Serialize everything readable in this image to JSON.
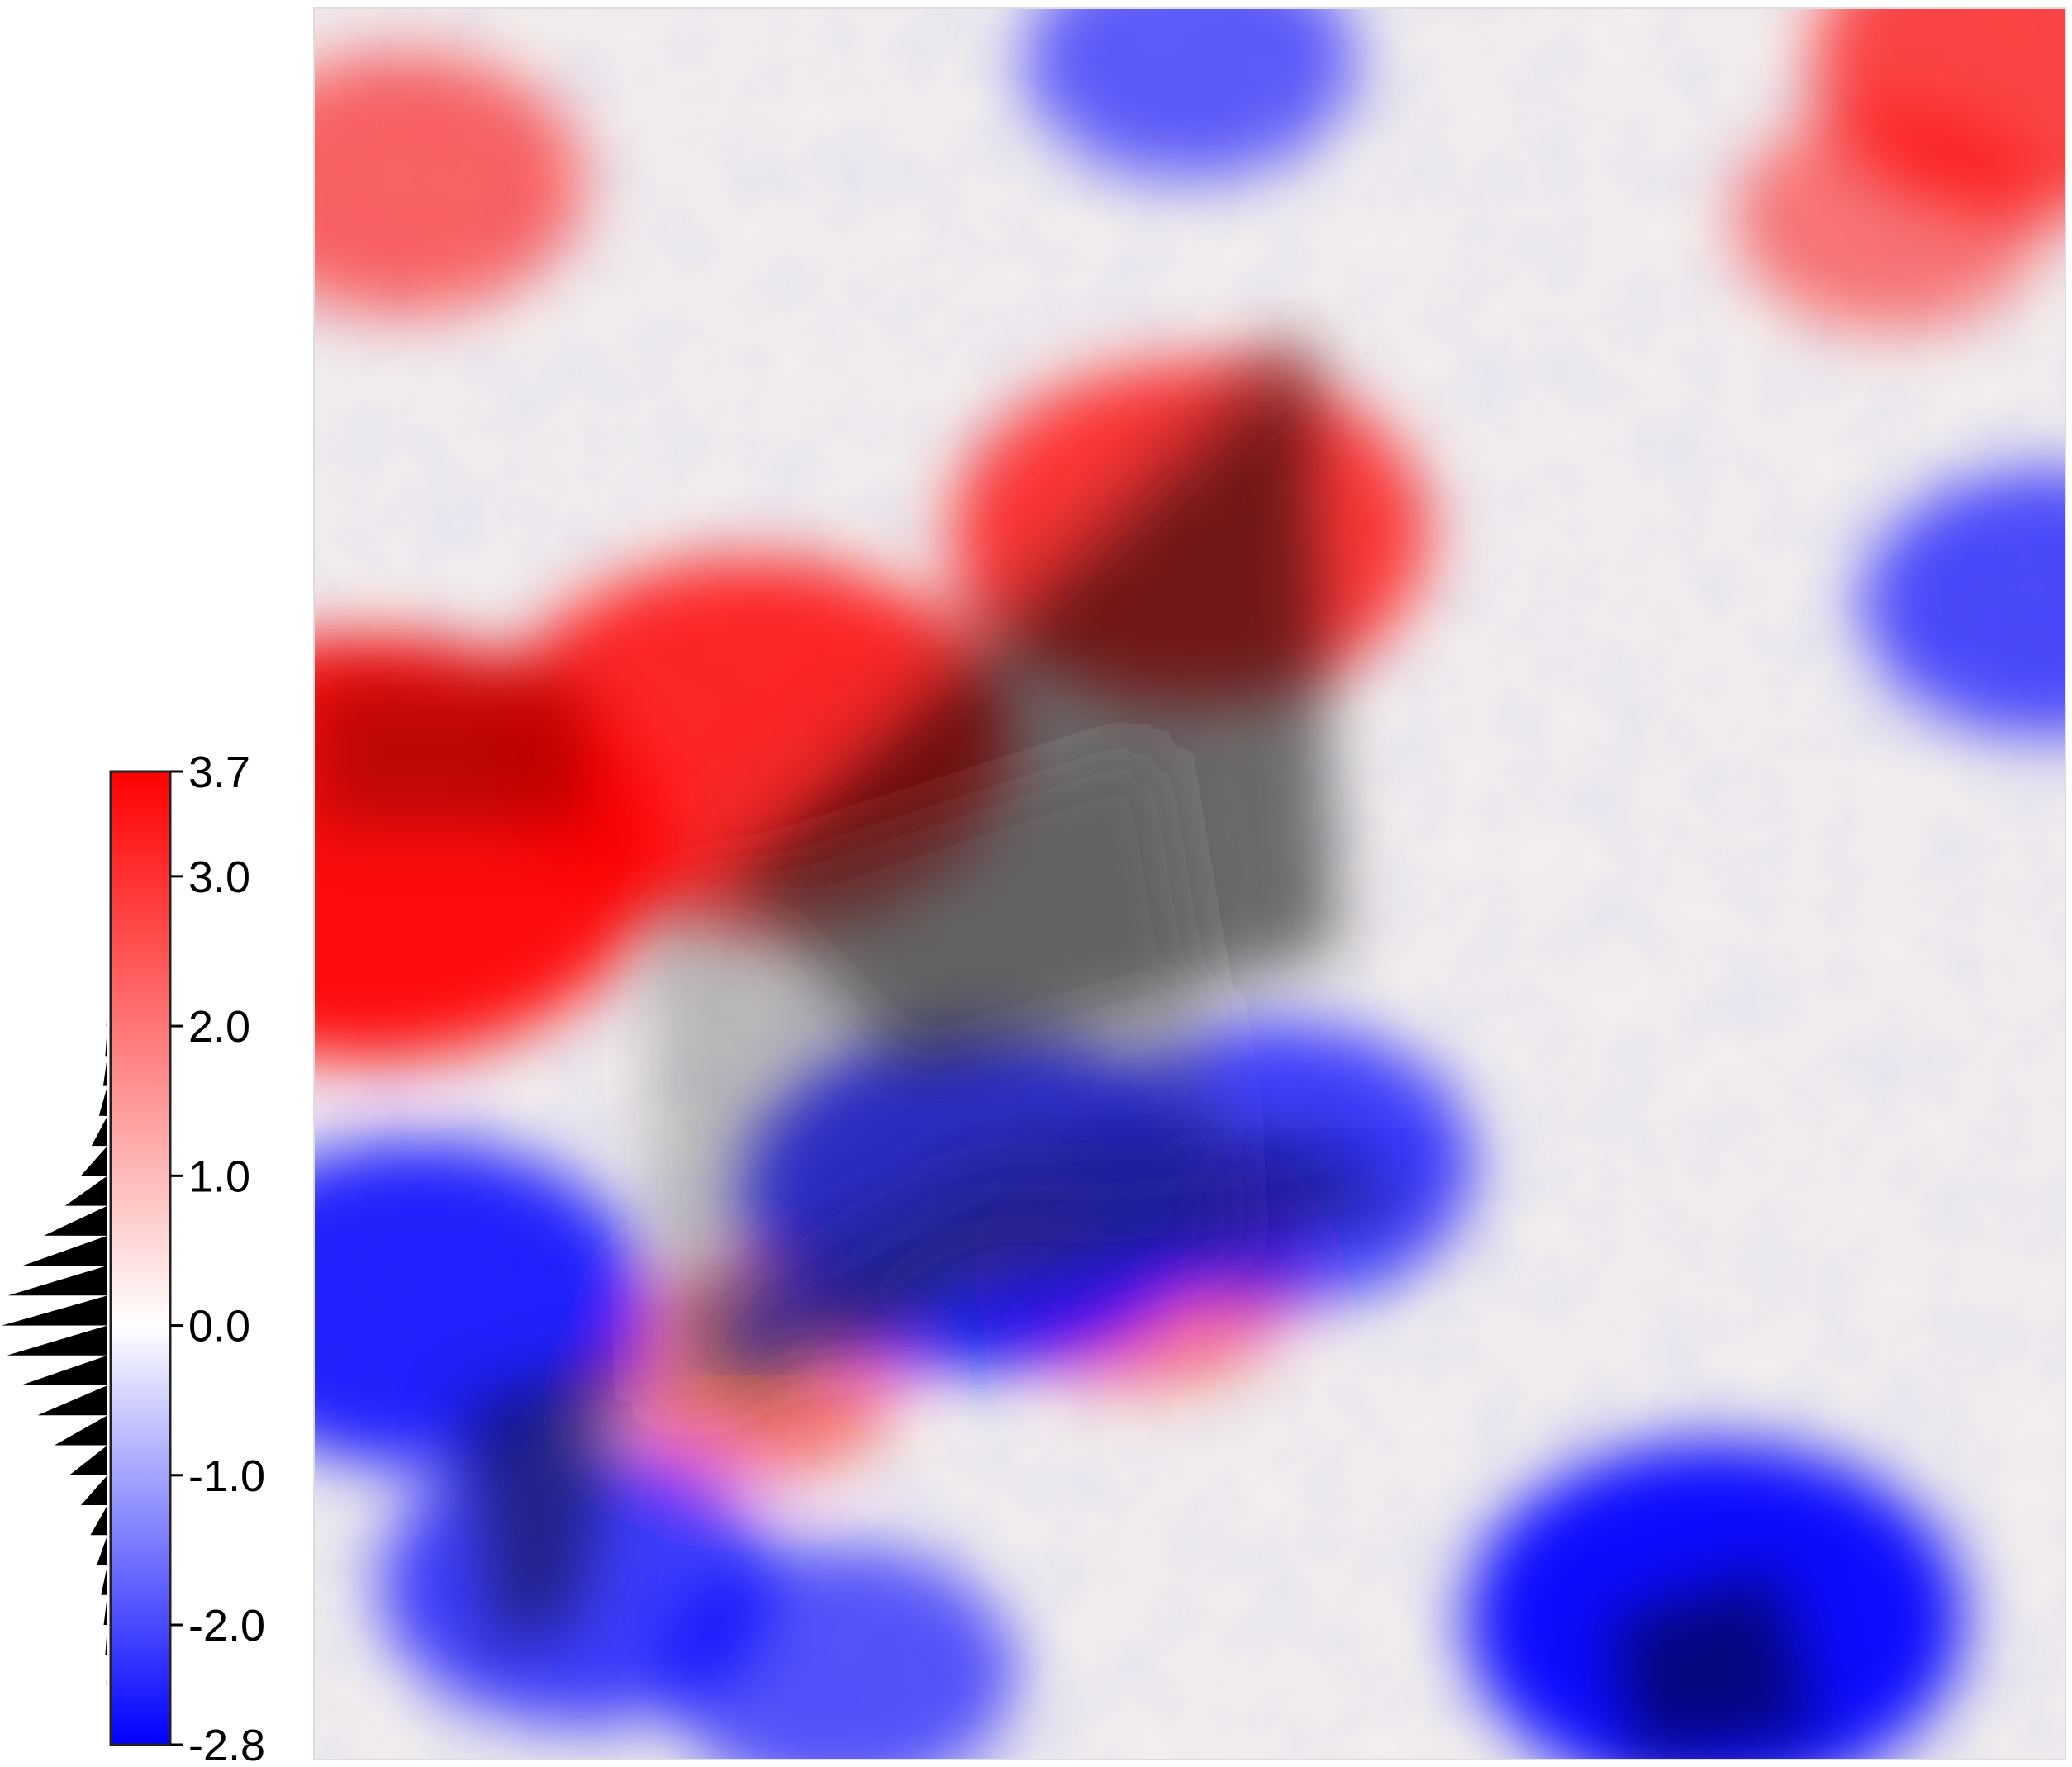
{
  "chart_data": {
    "type": "heatmap",
    "title": "",
    "xlabel": "",
    "ylabel": "",
    "grid": false,
    "legend": "left",
    "colorbar": {
      "vmin": -2.8,
      "vmax": 3.7,
      "ticks": [
        3.7,
        3.0,
        2.0,
        1.0,
        0.0,
        -1.0,
        -2.0,
        -2.8
      ],
      "tick_labels": [
        "3.7",
        "3.0",
        "2.0",
        "1.0",
        "0.0",
        "-1.0",
        "-2.0",
        "-2.8"
      ],
      "colors": {
        "min": "#0000ff",
        "mid": "#ffffff",
        "max": "#ff0000"
      }
    },
    "overlay": {
      "description_color": "#000000",
      "shading": "grayscale-anatomy"
    },
    "histogram": {
      "bins_value_center": [
        -2.8,
        -2.6,
        -2.4,
        -2.2,
        -2.0,
        -1.8,
        -1.6,
        -1.4,
        -1.2,
        -1.0,
        -0.8,
        -0.6,
        -0.4,
        -0.2,
        0.0,
        0.2,
        0.4,
        0.6,
        0.8,
        1.0,
        1.2,
        1.4,
        1.6,
        1.8,
        2.0,
        2.2,
        2.4,
        2.6,
        2.8,
        3.0,
        3.2,
        3.4,
        3.6
      ],
      "relative_density": [
        0.0,
        0.005,
        0.01,
        0.02,
        0.035,
        0.06,
        0.1,
        0.16,
        0.25,
        0.36,
        0.5,
        0.66,
        0.82,
        0.95,
        1.0,
        0.94,
        0.8,
        0.6,
        0.4,
        0.25,
        0.15,
        0.08,
        0.04,
        0.02,
        0.01,
        0.005,
        0.0,
        0.0,
        0.0,
        0.0,
        0.0,
        0.0,
        0.0
      ]
    },
    "field_seeds": {
      "red_blobs": [
        {
          "x": 0.03,
          "y": 0.48,
          "v": 3.7
        },
        {
          "x": 0.25,
          "y": 0.42,
          "v": 3.0
        },
        {
          "x": 0.5,
          "y": 0.3,
          "v": 2.6
        },
        {
          "x": 0.05,
          "y": 0.1,
          "v": 1.5
        },
        {
          "x": 0.98,
          "y": 0.03,
          "v": 2.2
        },
        {
          "x": 0.9,
          "y": 0.12,
          "v": 1.0
        },
        {
          "x": 0.47,
          "y": 0.72,
          "v": 1.2
        },
        {
          "x": 0.25,
          "y": 0.78,
          "v": 0.9
        }
      ],
      "blue_blobs": [
        {
          "x": 0.06,
          "y": 0.74,
          "v": -2.4
        },
        {
          "x": 0.38,
          "y": 0.68,
          "v": -2.6
        },
        {
          "x": 0.55,
          "y": 0.66,
          "v": -1.8
        },
        {
          "x": 0.8,
          "y": 0.92,
          "v": -2.8
        },
        {
          "x": 0.99,
          "y": 0.34,
          "v": -1.6
        },
        {
          "x": 0.5,
          "y": 0.03,
          "v": -1.2
        },
        {
          "x": 0.3,
          "y": 0.95,
          "v": -1.4
        },
        {
          "x": 0.15,
          "y": 0.9,
          "v": -1.8
        }
      ]
    }
  }
}
